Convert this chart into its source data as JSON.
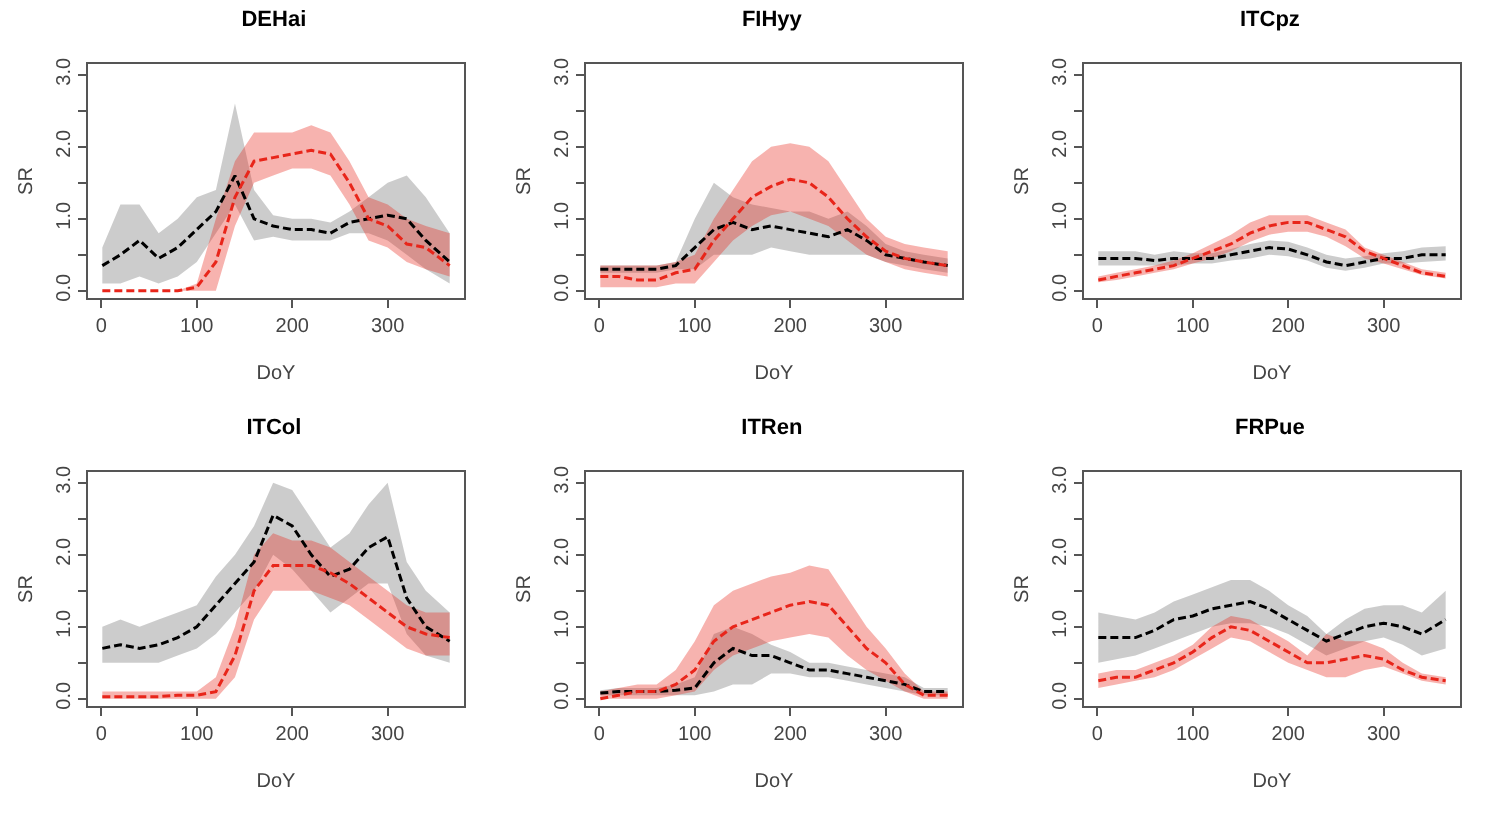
{
  "chart_data": [
    {
      "type": "line",
      "title": "DEHai",
      "xlabel": "DoY",
      "ylabel": "SR",
      "line_style": "dashed",
      "marker": "none",
      "xlim": [
        -14,
        380
      ],
      "ylim": [
        -0.1,
        3.15
      ],
      "xticks": [
        0,
        100,
        200,
        300
      ],
      "yticks": [
        {
          "value": 0,
          "label": "0.0"
        },
        {
          "value": 0.5,
          "label": null
        },
        {
          "value": 1,
          "label": "1.0"
        },
        {
          "value": 1.5,
          "label": null
        },
        {
          "value": 2,
          "label": "2.0"
        },
        {
          "value": 2.5,
          "label": null
        },
        {
          "value": 3,
          "label": "3.0"
        }
      ],
      "x": [
        1,
        20,
        40,
        60,
        80,
        100,
        120,
        140,
        160,
        180,
        200,
        220,
        240,
        260,
        280,
        300,
        320,
        340,
        365
      ],
      "series": [
        {
          "color": "#000000",
          "values": [
            0.35,
            0.5,
            0.7,
            0.45,
            0.6,
            0.85,
            1.1,
            1.6,
            1.0,
            0.9,
            0.85,
            0.85,
            0.8,
            0.95,
            1.0,
            1.05,
            1.0,
            0.7,
            0.4
          ],
          "lower": [
            0.1,
            0.1,
            0.2,
            0.1,
            0.2,
            0.4,
            0.8,
            1.2,
            0.7,
            0.75,
            0.7,
            0.7,
            0.7,
            0.8,
            0.8,
            0.7,
            0.5,
            0.3,
            0.1
          ],
          "upper": [
            0.6,
            1.2,
            1.2,
            0.8,
            1.0,
            1.3,
            1.4,
            2.6,
            1.4,
            1.05,
            1.0,
            1.0,
            0.95,
            1.1,
            1.3,
            1.5,
            1.6,
            1.3,
            0.8
          ]
        },
        {
          "color": "#e8251a",
          "values": [
            0,
            0,
            0,
            0,
            0,
            0.05,
            0.4,
            1.3,
            1.8,
            1.85,
            1.9,
            1.95,
            1.9,
            1.5,
            1.0,
            0.9,
            0.65,
            0.6,
            0.35
          ],
          "lower": [
            0,
            0,
            0,
            0,
            0,
            0,
            0,
            0.9,
            1.5,
            1.6,
            1.7,
            1.7,
            1.6,
            1.2,
            0.7,
            0.6,
            0.4,
            0.3,
            0.2
          ],
          "upper": [
            0,
            0,
            0,
            0,
            0,
            0.1,
            1.0,
            1.8,
            2.2,
            2.2,
            2.2,
            2.3,
            2.2,
            1.8,
            1.3,
            1.2,
            1.0,
            0.9,
            0.8
          ]
        }
      ]
    },
    {
      "type": "line",
      "title": "FIHyy",
      "xlabel": "DoY",
      "ylabel": "SR",
      "line_style": "dashed",
      "marker": "none",
      "xlim": [
        -14,
        380
      ],
      "ylim": [
        -0.1,
        3.15
      ],
      "xticks": [
        0,
        100,
        200,
        300
      ],
      "yticks": [
        {
          "value": 0,
          "label": "0.0"
        },
        {
          "value": 0.5,
          "label": null
        },
        {
          "value": 1,
          "label": "1.0"
        },
        {
          "value": 1.5,
          "label": null
        },
        {
          "value": 2,
          "label": "2.0"
        },
        {
          "value": 2.5,
          "label": null
        },
        {
          "value": 3,
          "label": "3.0"
        }
      ],
      "x": [
        1,
        20,
        40,
        60,
        80,
        100,
        120,
        140,
        160,
        180,
        200,
        220,
        240,
        260,
        280,
        300,
        320,
        340,
        365
      ],
      "series": [
        {
          "color": "#000000",
          "values": [
            0.3,
            0.3,
            0.3,
            0.3,
            0.35,
            0.6,
            0.85,
            0.95,
            0.85,
            0.9,
            0.85,
            0.8,
            0.75,
            0.85,
            0.7,
            0.5,
            0.45,
            0.4,
            0.35
          ],
          "lower": [
            0.25,
            0.25,
            0.25,
            0.25,
            0.3,
            0.3,
            0.5,
            0.5,
            0.5,
            0.6,
            0.55,
            0.5,
            0.5,
            0.5,
            0.5,
            0.4,
            0.35,
            0.3,
            0.25
          ],
          "upper": [
            0.35,
            0.35,
            0.35,
            0.35,
            0.4,
            1.0,
            1.5,
            1.3,
            1.2,
            1.15,
            1.1,
            1.1,
            1.0,
            1.1,
            0.9,
            0.65,
            0.55,
            0.5,
            0.45
          ]
        },
        {
          "color": "#e8251a",
          "values": [
            0.2,
            0.2,
            0.15,
            0.15,
            0.25,
            0.3,
            0.7,
            1.0,
            1.3,
            1.45,
            1.55,
            1.5,
            1.3,
            1.0,
            0.75,
            0.55,
            0.45,
            0.4,
            0.35
          ],
          "lower": [
            0.05,
            0.05,
            0.05,
            0.05,
            0.1,
            0.1,
            0.4,
            0.7,
            0.9,
            1.05,
            1.1,
            1.0,
            0.9,
            0.7,
            0.5,
            0.4,
            0.3,
            0.25,
            0.2
          ],
          "upper": [
            0.35,
            0.35,
            0.35,
            0.35,
            0.4,
            0.5,
            1.0,
            1.4,
            1.8,
            2.0,
            2.05,
            2.0,
            1.8,
            1.4,
            1.0,
            0.75,
            0.65,
            0.6,
            0.55
          ]
        }
      ]
    },
    {
      "type": "line",
      "title": "ITCpz",
      "xlabel": "DoY",
      "ylabel": "SR",
      "line_style": "dashed",
      "marker": "none",
      "xlim": [
        -14,
        380
      ],
      "ylim": [
        -0.1,
        3.15
      ],
      "xticks": [
        0,
        100,
        200,
        300
      ],
      "yticks": [
        {
          "value": 0,
          "label": "0.0"
        },
        {
          "value": 0.5,
          "label": null
        },
        {
          "value": 1,
          "label": "1.0"
        },
        {
          "value": 1.5,
          "label": null
        },
        {
          "value": 2,
          "label": "2.0"
        },
        {
          "value": 2.5,
          "label": null
        },
        {
          "value": 3,
          "label": "3.0"
        }
      ],
      "x": [
        1,
        20,
        40,
        60,
        80,
        100,
        120,
        140,
        160,
        180,
        200,
        220,
        240,
        260,
        280,
        300,
        320,
        340,
        365
      ],
      "series": [
        {
          "color": "#000000",
          "values": [
            0.45,
            0.45,
            0.45,
            0.42,
            0.45,
            0.45,
            0.45,
            0.5,
            0.55,
            0.6,
            0.58,
            0.5,
            0.4,
            0.35,
            0.4,
            0.45,
            0.45,
            0.5,
            0.5
          ],
          "lower": [
            0.35,
            0.35,
            0.35,
            0.35,
            0.35,
            0.38,
            0.38,
            0.42,
            0.45,
            0.5,
            0.48,
            0.42,
            0.32,
            0.28,
            0.32,
            0.38,
            0.38,
            0.4,
            0.42
          ],
          "upper": [
            0.55,
            0.55,
            0.55,
            0.5,
            0.55,
            0.52,
            0.52,
            0.58,
            0.65,
            0.7,
            0.68,
            0.6,
            0.5,
            0.45,
            0.48,
            0.52,
            0.55,
            0.6,
            0.62
          ]
        },
        {
          "color": "#e8251a",
          "values": [
            0.15,
            0.2,
            0.25,
            0.3,
            0.35,
            0.45,
            0.55,
            0.65,
            0.8,
            0.9,
            0.95,
            0.95,
            0.85,
            0.75,
            0.55,
            0.45,
            0.35,
            0.25,
            0.2
          ],
          "lower": [
            0.12,
            0.15,
            0.2,
            0.25,
            0.3,
            0.38,
            0.45,
            0.55,
            0.68,
            0.78,
            0.82,
            0.82,
            0.75,
            0.62,
            0.45,
            0.38,
            0.3,
            0.22,
            0.17
          ],
          "upper": [
            0.2,
            0.25,
            0.3,
            0.35,
            0.42,
            0.52,
            0.65,
            0.78,
            0.95,
            1.05,
            1.05,
            1.05,
            0.95,
            0.85,
            0.6,
            0.5,
            0.4,
            0.3,
            0.25
          ]
        }
      ]
    },
    {
      "type": "line",
      "title": "ITCol",
      "xlabel": "DoY",
      "ylabel": "SR",
      "line_style": "dashed",
      "marker": "none",
      "xlim": [
        -14,
        380
      ],
      "ylim": [
        -0.1,
        3.15
      ],
      "xticks": [
        0,
        100,
        200,
        300
      ],
      "yticks": [
        {
          "value": 0,
          "label": "0.0"
        },
        {
          "value": 0.5,
          "label": null
        },
        {
          "value": 1,
          "label": "1.0"
        },
        {
          "value": 1.5,
          "label": null
        },
        {
          "value": 2,
          "label": "2.0"
        },
        {
          "value": 2.5,
          "label": null
        },
        {
          "value": 3,
          "label": "3.0"
        }
      ],
      "x": [
        1,
        20,
        40,
        60,
        80,
        100,
        120,
        140,
        160,
        180,
        200,
        220,
        240,
        260,
        280,
        300,
        320,
        340,
        365
      ],
      "series": [
        {
          "color": "#000000",
          "values": [
            0.7,
            0.75,
            0.7,
            0.75,
            0.85,
            1.0,
            1.3,
            1.6,
            1.9,
            2.55,
            2.4,
            2.0,
            1.7,
            1.8,
            2.1,
            2.25,
            1.4,
            1.0,
            0.8
          ],
          "lower": [
            0.5,
            0.5,
            0.5,
            0.5,
            0.6,
            0.7,
            0.9,
            1.2,
            1.5,
            2.0,
            1.8,
            1.5,
            1.2,
            1.4,
            1.6,
            1.6,
            0.9,
            0.6,
            0.5
          ],
          "upper": [
            1.0,
            1.1,
            1.0,
            1.1,
            1.2,
            1.3,
            1.7,
            2.0,
            2.4,
            3.0,
            2.9,
            2.5,
            2.1,
            2.3,
            2.7,
            3.0,
            1.9,
            1.5,
            1.2
          ]
        },
        {
          "color": "#e8251a",
          "values": [
            0.03,
            0.03,
            0.03,
            0.03,
            0.05,
            0.05,
            0.1,
            0.6,
            1.5,
            1.85,
            1.85,
            1.85,
            1.75,
            1.6,
            1.4,
            1.2,
            1.0,
            0.9,
            0.85
          ],
          "lower": [
            0,
            0,
            0,
            0,
            0,
            0,
            0,
            0.3,
            1.1,
            1.5,
            1.5,
            1.5,
            1.4,
            1.3,
            1.1,
            0.9,
            0.7,
            0.6,
            0.6
          ],
          "upper": [
            0.1,
            0.1,
            0.1,
            0.1,
            0.1,
            0.1,
            0.3,
            1.0,
            2.0,
            2.3,
            2.2,
            2.2,
            2.1,
            1.9,
            1.7,
            1.5,
            1.3,
            1.2,
            1.2
          ]
        }
      ]
    },
    {
      "type": "line",
      "title": "ITRen",
      "xlabel": "DoY",
      "ylabel": "SR",
      "line_style": "dashed",
      "marker": "none",
      "xlim": [
        -14,
        380
      ],
      "ylim": [
        -0.1,
        3.15
      ],
      "xticks": [
        0,
        100,
        200,
        300
      ],
      "yticks": [
        {
          "value": 0,
          "label": "0.0"
        },
        {
          "value": 0.5,
          "label": null
        },
        {
          "value": 1,
          "label": "1.0"
        },
        {
          "value": 1.5,
          "label": null
        },
        {
          "value": 2,
          "label": "2.0"
        },
        {
          "value": 2.5,
          "label": null
        },
        {
          "value": 3,
          "label": "3.0"
        }
      ],
      "x": [
        1,
        20,
        40,
        60,
        80,
        100,
        120,
        140,
        160,
        180,
        200,
        220,
        240,
        260,
        280,
        300,
        320,
        340,
        365
      ],
      "series": [
        {
          "color": "#000000",
          "values": [
            0.08,
            0.1,
            0.1,
            0.1,
            0.12,
            0.15,
            0.5,
            0.7,
            0.6,
            0.6,
            0.5,
            0.4,
            0.4,
            0.35,
            0.3,
            0.25,
            0.2,
            0.1,
            0.1
          ],
          "lower": [
            0.05,
            0.05,
            0.05,
            0.05,
            0.05,
            0.05,
            0.1,
            0.2,
            0.2,
            0.35,
            0.35,
            0.3,
            0.3,
            0.25,
            0.2,
            0.15,
            0.1,
            0.05,
            0.05
          ],
          "upper": [
            0.12,
            0.15,
            0.15,
            0.15,
            0.2,
            0.3,
            0.9,
            1.0,
            0.9,
            0.75,
            0.65,
            0.5,
            0.5,
            0.45,
            0.4,
            0.35,
            0.3,
            0.15,
            0.15
          ]
        },
        {
          "color": "#e8251a",
          "values": [
            0,
            0.05,
            0.1,
            0.1,
            0.2,
            0.4,
            0.8,
            1.0,
            1.1,
            1.2,
            1.3,
            1.35,
            1.3,
            1.0,
            0.7,
            0.5,
            0.2,
            0.05,
            0.05
          ],
          "lower": [
            0,
            0,
            0,
            0,
            0.05,
            0.1,
            0.4,
            0.6,
            0.7,
            0.8,
            0.85,
            0.9,
            0.85,
            0.6,
            0.4,
            0.25,
            0.1,
            0,
            0
          ],
          "upper": [
            0.1,
            0.15,
            0.2,
            0.2,
            0.4,
            0.8,
            1.3,
            1.5,
            1.6,
            1.7,
            1.75,
            1.85,
            1.8,
            1.4,
            1.0,
            0.7,
            0.35,
            0.1,
            0.1
          ]
        }
      ]
    },
    {
      "type": "line",
      "title": "FRPue",
      "xlabel": "DoY",
      "ylabel": "SR",
      "line_style": "dashed",
      "marker": "none",
      "xlim": [
        -14,
        380
      ],
      "ylim": [
        -0.1,
        3.15
      ],
      "xticks": [
        0,
        100,
        200,
        300
      ],
      "yticks": [
        {
          "value": 0,
          "label": "0.0"
        },
        {
          "value": 0.5,
          "label": null
        },
        {
          "value": 1,
          "label": "1.0"
        },
        {
          "value": 1.5,
          "label": null
        },
        {
          "value": 2,
          "label": "2.0"
        },
        {
          "value": 2.5,
          "label": null
        },
        {
          "value": 3,
          "label": "3.0"
        }
      ],
      "x": [
        1,
        20,
        40,
        60,
        80,
        100,
        120,
        140,
        160,
        180,
        200,
        220,
        240,
        260,
        280,
        300,
        320,
        340,
        365
      ],
      "series": [
        {
          "color": "#000000",
          "values": [
            0.85,
            0.85,
            0.85,
            0.95,
            1.1,
            1.15,
            1.25,
            1.3,
            1.35,
            1.25,
            1.1,
            0.95,
            0.8,
            0.9,
            1.0,
            1.05,
            1.0,
            0.9,
            1.1
          ],
          "lower": [
            0.5,
            0.55,
            0.6,
            0.7,
            0.8,
            0.9,
            1.0,
            1.05,
            1.05,
            1.0,
            0.9,
            0.75,
            0.6,
            0.7,
            0.8,
            0.85,
            0.75,
            0.6,
            0.7
          ],
          "upper": [
            1.2,
            1.15,
            1.1,
            1.2,
            1.35,
            1.45,
            1.55,
            1.65,
            1.65,
            1.5,
            1.3,
            1.15,
            0.9,
            1.1,
            1.25,
            1.3,
            1.3,
            1.2,
            1.5
          ]
        },
        {
          "color": "#e8251a",
          "values": [
            0.25,
            0.3,
            0.3,
            0.4,
            0.5,
            0.65,
            0.85,
            1.0,
            0.95,
            0.8,
            0.65,
            0.5,
            0.5,
            0.55,
            0.6,
            0.55,
            0.4,
            0.3,
            0.25
          ],
          "lower": [
            0.15,
            0.2,
            0.25,
            0.3,
            0.4,
            0.55,
            0.7,
            0.85,
            0.8,
            0.65,
            0.5,
            0.4,
            0.3,
            0.3,
            0.4,
            0.45,
            0.35,
            0.25,
            0.2
          ],
          "upper": [
            0.35,
            0.4,
            0.4,
            0.5,
            0.6,
            0.75,
            1.0,
            1.15,
            1.1,
            0.95,
            0.8,
            0.6,
            0.9,
            0.8,
            0.8,
            0.7,
            0.5,
            0.35,
            0.3
          ]
        }
      ]
    }
  ]
}
